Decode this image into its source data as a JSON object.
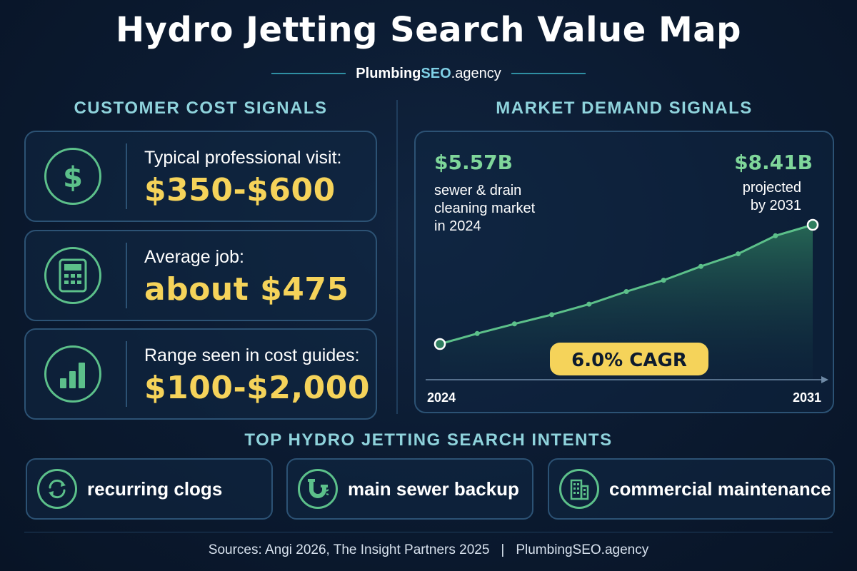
{
  "header": {
    "title": "Hydro Jetting Search Value Map",
    "brand_main": "Plumbing",
    "brand_seo": "SEO",
    "brand_suffix": ".agency"
  },
  "cost_section": {
    "title": "CUSTOMER COST SIGNALS",
    "cards": [
      {
        "icon": "dollar-icon",
        "label": "Typical professional visit:",
        "value": "$350-$600"
      },
      {
        "icon": "calculator-icon",
        "label": "Average job:",
        "value": "about $475"
      },
      {
        "icon": "bar-chart-icon",
        "label": "Range seen in cost guides:",
        "value": "$100-$2,000"
      }
    ]
  },
  "demand_section": {
    "title": "MARKET DEMAND SIGNALS",
    "start_value": "$5.57B",
    "start_desc": [
      "sewer & drain",
      "cleaning market",
      "in 2024"
    ],
    "end_value": "$8.41B",
    "end_desc": [
      "projected",
      "by 2031"
    ],
    "cagr_badge": "6.0% CAGR",
    "x_start_label": "2024",
    "x_end_label": "2031"
  },
  "chart_data": {
    "type": "area",
    "title": "",
    "xlabel": "",
    "ylabel": "",
    "x_labels": [
      "2024",
      "2031"
    ],
    "series": [
      {
        "values": [
          5.57,
          5.82,
          6.05,
          6.27,
          6.52,
          6.82,
          7.09,
          7.42,
          7.72,
          8.15,
          8.41
        ]
      }
    ],
    "annotations": [
      "$5.57B",
      "$8.41B",
      "6.0% CAGR"
    ],
    "grid": false
  },
  "intents": {
    "title": "TOP HYDRO JETTING SEARCH INTENTS",
    "items": [
      {
        "icon": "refresh-icon",
        "label": "recurring clogs"
      },
      {
        "icon": "pipe-icon",
        "label": "main sewer backup"
      },
      {
        "icon": "building-icon",
        "label": "commercial maintenance"
      }
    ]
  },
  "footer": {
    "sources": "Sources: Angi 2026, The Insight Partners 2025",
    "separator": "|",
    "brand": "PlumbingSEO.agency"
  },
  "colors": {
    "background": "#0b1a30",
    "accent_green": "#5cc08a",
    "value_yellow": "#f5d35a",
    "section_teal": "#8fd3dc",
    "card_border": "#2c5274"
  }
}
